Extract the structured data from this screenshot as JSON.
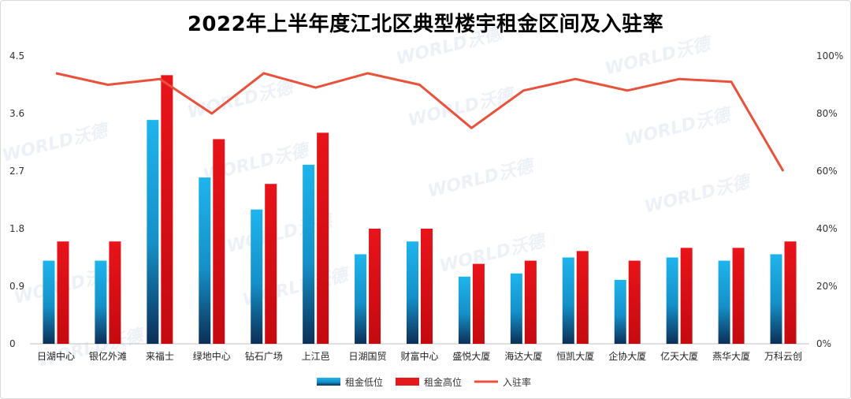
{
  "chart_data": {
    "type": "bar",
    "title": "2022年上半年度江北区典型楼宇租金区间及入驻率",
    "categories": [
      "日湖中心",
      "银亿外滩",
      "来福士",
      "绿地中心",
      "钻石广场",
      "上江邑",
      "日湖国贸",
      "财富中心",
      "盛悦大厦",
      "海达大厦",
      "恒凯大厦",
      "企协大厦",
      "亿天大厦",
      "燕华大厦",
      "万科云创"
    ],
    "series": [
      {
        "name": "租金低位",
        "kind": "bar",
        "axis": "left",
        "color": "#1ab0e8",
        "values": [
          1.3,
          1.3,
          3.5,
          2.6,
          2.1,
          2.8,
          1.4,
          1.6,
          1.05,
          1.1,
          1.35,
          1.0,
          1.35,
          1.3,
          1.4
        ]
      },
      {
        "name": "租金高位",
        "kind": "bar",
        "axis": "left",
        "color": "#e31a1c",
        "values": [
          1.6,
          1.6,
          4.2,
          3.2,
          2.5,
          3.3,
          1.8,
          1.8,
          1.25,
          1.3,
          1.45,
          1.3,
          1.5,
          1.5,
          1.6
        ]
      },
      {
        "name": "入驻率",
        "kind": "line",
        "axis": "right",
        "color": "#e8513a",
        "values": [
          94,
          90,
          92,
          80,
          94,
          89,
          94,
          90,
          75,
          88,
          92,
          88,
          92,
          91,
          60
        ]
      }
    ],
    "y_left": {
      "ticks": [
        "0",
        "0.9",
        "1.8",
        "2.7",
        "3.6",
        "4.5"
      ],
      "min": 0,
      "max": 4.5
    },
    "y_right": {
      "ticks": [
        "0%",
        "20%",
        "40%",
        "60%",
        "80%",
        "100%"
      ],
      "min": 0,
      "max": 100
    },
    "grid": false,
    "legend_position": "bottom"
  },
  "watermark": "WORLD沃德"
}
